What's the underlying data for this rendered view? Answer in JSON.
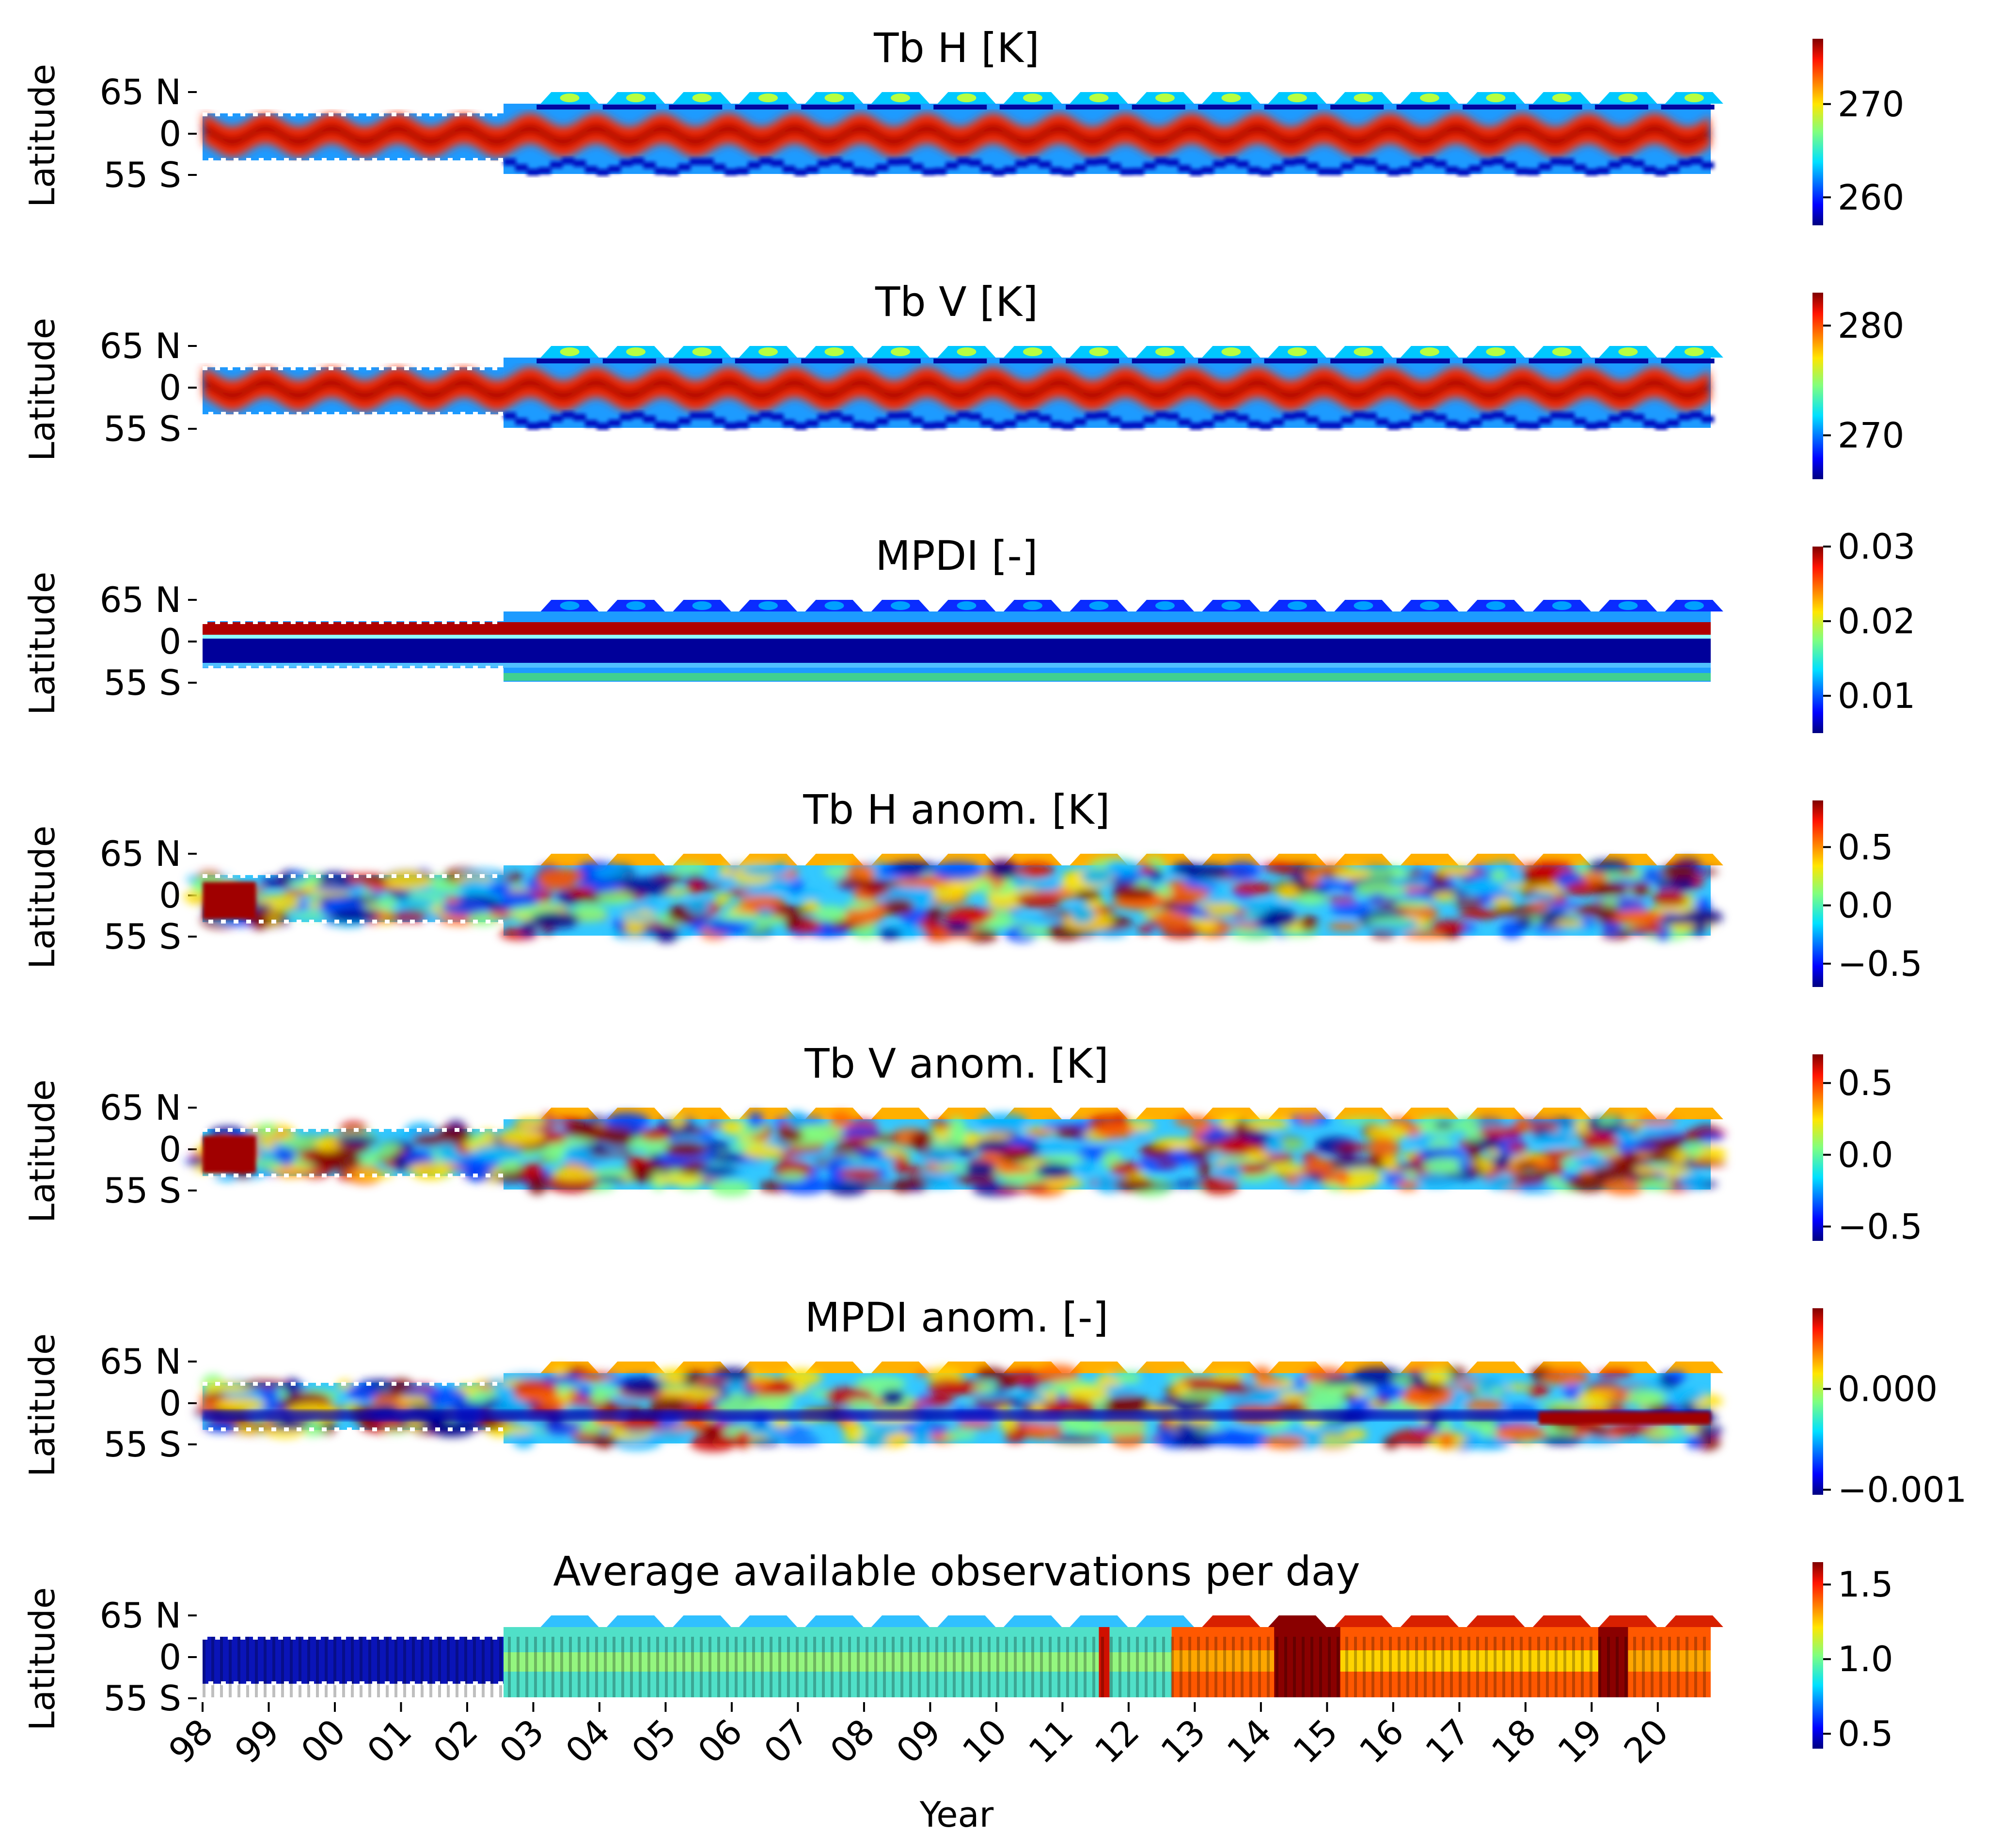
{
  "figure": {
    "xlabel": "Year",
    "ylabel": "Latitude",
    "lat_ticks": [
      "65 N",
      "0",
      "55 S"
    ],
    "year_ticks": [
      "98",
      "99",
      "00",
      "01",
      "02",
      "03",
      "04",
      "05",
      "06",
      "07",
      "08",
      "09",
      "10",
      "11",
      "12",
      "13",
      "14",
      "15",
      "16",
      "17",
      "18",
      "19",
      "20"
    ]
  },
  "chart_data": [
    {
      "type": "heatmap",
      "title": "Tb H [K]",
      "colormap": "jet",
      "colorbar": {
        "ticks": [
          "270",
          "260"
        ],
        "values": [
          270,
          260
        ],
        "range": [
          257,
          277
        ]
      },
      "x_range": [
        "1998",
        "2020-12"
      ],
      "y_range": [
        -55,
        65
      ],
      "pattern": "seasonal"
    },
    {
      "type": "heatmap",
      "title": "Tb V [K]",
      "colormap": "jet",
      "colorbar": {
        "ticks": [
          "280",
          "270"
        ],
        "values": [
          280,
          270
        ],
        "range": [
          266,
          283
        ]
      },
      "x_range": [
        "1998",
        "2020-12"
      ],
      "y_range": [
        -55,
        65
      ],
      "pattern": "seasonal"
    },
    {
      "type": "heatmap",
      "title": "MPDI [-]",
      "colormap": "jet",
      "colorbar": {
        "ticks": [
          "0.03",
          "0.02",
          "0.01"
        ],
        "values": [
          0.03,
          0.02,
          0.01
        ],
        "range": [
          0.005,
          0.03
        ]
      },
      "x_range": [
        "1998",
        "2020-12"
      ],
      "y_range": [
        -55,
        65
      ],
      "pattern": "mpdi"
    },
    {
      "type": "heatmap",
      "title": "Tb H anom. [K]",
      "colormap": "jet",
      "colorbar": {
        "ticks": [
          "0.5",
          "0.0",
          "−0.5"
        ],
        "values": [
          0.5,
          0.0,
          -0.5
        ],
        "range": [
          -0.7,
          0.9
        ]
      },
      "x_range": [
        "1998",
        "2020-12"
      ],
      "y_range": [
        -55,
        65
      ],
      "pattern": "anomaly"
    },
    {
      "type": "heatmap",
      "title": "Tb V anom. [K]",
      "colormap": "jet",
      "colorbar": {
        "ticks": [
          "0.5",
          "0.0",
          "−0.5"
        ],
        "values": [
          0.5,
          0.0,
          -0.5
        ],
        "range": [
          -0.6,
          0.7
        ]
      },
      "x_range": [
        "1998",
        "2020-12"
      ],
      "y_range": [
        -55,
        65
      ],
      "pattern": "anomaly"
    },
    {
      "type": "heatmap",
      "title": "MPDI anom. [-]",
      "colormap": "jet",
      "colorbar": {
        "ticks": [
          "0.000",
          "−0.001"
        ],
        "values": [
          0.0,
          -0.001
        ],
        "range": [
          -0.00105,
          0.0008
        ]
      },
      "x_range": [
        "1998",
        "2020-12"
      ],
      "y_range": [
        -55,
        65
      ],
      "pattern": "anomaly"
    },
    {
      "type": "heatmap",
      "title": "Average available observations per day",
      "colormap": "jet",
      "colorbar": {
        "ticks": [
          "1.5",
          "1.0",
          "0.5"
        ],
        "values": [
          1.5,
          1.0,
          0.5
        ],
        "range": [
          0.4,
          1.65
        ]
      },
      "x_range": [
        "1998",
        "2020-12"
      ],
      "y_range": [
        -55,
        65
      ],
      "pattern": "observations"
    }
  ]
}
